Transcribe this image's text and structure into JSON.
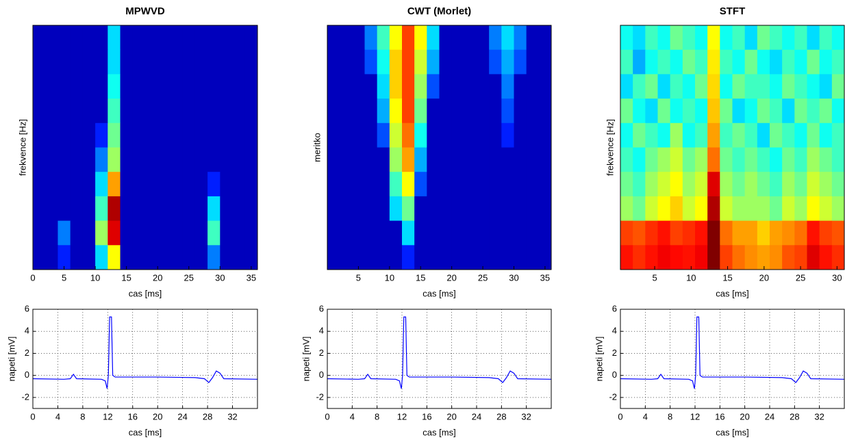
{
  "chart_data": [
    {
      "type": "heatmap",
      "title": "MPWVD",
      "xlabel": "cas [ms]",
      "ylabel": "frekvence [Hz]",
      "xlim": [
        0,
        36
      ],
      "xticks": [
        0,
        5,
        10,
        15,
        20,
        25,
        30,
        35
      ],
      "z": [
        [
          0,
          0,
          0,
          0,
          0,
          0,
          0.3,
          0,
          0,
          0,
          0,
          0,
          0,
          0,
          0,
          0,
          0,
          0
        ],
        [
          0,
          0,
          0,
          0,
          0,
          0,
          0.3,
          0,
          0,
          0,
          0,
          0,
          0,
          0,
          0,
          0,
          0,
          0
        ],
        [
          0,
          0,
          0,
          0,
          0,
          0,
          0.35,
          0,
          0,
          0,
          0,
          0,
          0,
          0,
          0,
          0,
          0,
          0
        ],
        [
          0,
          0,
          0,
          0,
          0,
          0,
          0.4,
          0,
          0,
          0,
          0,
          0,
          0,
          0,
          0,
          0,
          0,
          0
        ],
        [
          0,
          0,
          0,
          0,
          0,
          0.1,
          0.45,
          0,
          0,
          0,
          0,
          0,
          0,
          0,
          0,
          0,
          0,
          0
        ],
        [
          0,
          0,
          0,
          0,
          0,
          0.2,
          0.5,
          0,
          0,
          0,
          0,
          0,
          0,
          0,
          0,
          0,
          0,
          0
        ],
        [
          0,
          0,
          0,
          0,
          0,
          0.3,
          0.7,
          0,
          0,
          0,
          0,
          0,
          0,
          0,
          0.1,
          0,
          0,
          0
        ],
        [
          0,
          0,
          0,
          0,
          0,
          0.4,
          0.95,
          0,
          0,
          0,
          0,
          0,
          0,
          0,
          0.3,
          0,
          0,
          0
        ],
        [
          0,
          0,
          0.2,
          0,
          0,
          0.5,
          0.9,
          0,
          0,
          0,
          0,
          0,
          0,
          0,
          0.4,
          0,
          0,
          0
        ],
        [
          0,
          0,
          0.1,
          0,
          0,
          0.3,
          0.6,
          0,
          0,
          0,
          0,
          0,
          0,
          0,
          0.2,
          0,
          0,
          0
        ]
      ]
    },
    {
      "type": "heatmap",
      "title": "CWT (Morlet)",
      "xlabel": "cas [ms]",
      "ylabel": "meritko",
      "xlim": [
        0,
        36
      ],
      "xticks": [
        5,
        10,
        15,
        20,
        25,
        30,
        35
      ],
      "z": [
        [
          0,
          0,
          0,
          0.2,
          0.4,
          0.6,
          0.8,
          0.6,
          0.3,
          0,
          0,
          0,
          0,
          0.2,
          0.3,
          0.2,
          0,
          0
        ],
        [
          0,
          0,
          0,
          0.15,
          0.35,
          0.65,
          0.8,
          0.55,
          0.25,
          0,
          0,
          0,
          0,
          0.15,
          0.25,
          0.15,
          0,
          0
        ],
        [
          0,
          0,
          0,
          0,
          0.3,
          0.65,
          0.8,
          0.5,
          0.15,
          0,
          0,
          0,
          0,
          0,
          0.2,
          0,
          0,
          0
        ],
        [
          0,
          0,
          0,
          0,
          0.25,
          0.6,
          0.8,
          0.45,
          0,
          0,
          0,
          0,
          0,
          0,
          0.15,
          0,
          0,
          0
        ],
        [
          0,
          0,
          0,
          0,
          0.15,
          0.55,
          0.75,
          0.35,
          0,
          0,
          0,
          0,
          0,
          0,
          0.1,
          0,
          0,
          0
        ],
        [
          0,
          0,
          0,
          0,
          0,
          0.5,
          0.7,
          0.25,
          0,
          0,
          0,
          0,
          0,
          0,
          0,
          0,
          0,
          0
        ],
        [
          0,
          0,
          0,
          0,
          0,
          0.4,
          0.6,
          0.15,
          0,
          0,
          0,
          0,
          0,
          0,
          0,
          0,
          0,
          0
        ],
        [
          0,
          0,
          0,
          0,
          0,
          0.3,
          0.45,
          0,
          0,
          0,
          0,
          0,
          0,
          0,
          0,
          0,
          0,
          0
        ],
        [
          0,
          0,
          0,
          0,
          0,
          0,
          0.3,
          0,
          0,
          0,
          0,
          0,
          0,
          0,
          0,
          0,
          0,
          0
        ],
        [
          0,
          0,
          0,
          0,
          0,
          0,
          0.1,
          0,
          0,
          0,
          0,
          0,
          0,
          0,
          0,
          0,
          0,
          0
        ]
      ]
    },
    {
      "type": "heatmap",
      "title": "STFT",
      "xlabel": "cas [ms]",
      "ylabel": "frekvence [Hz]",
      "xlim": [
        0.3,
        31
      ],
      "xticks": [
        5,
        10,
        15,
        20,
        25,
        30
      ],
      "z": [
        [
          0.35,
          0.3,
          0.4,
          0.35,
          0.45,
          0.4,
          0.35,
          0.6,
          0.35,
          0.4,
          0.3,
          0.45,
          0.4,
          0.35,
          0.4,
          0.3,
          0.4,
          0.35
        ],
        [
          0.4,
          0.25,
          0.35,
          0.4,
          0.35,
          0.45,
          0.4,
          0.62,
          0.4,
          0.35,
          0.45,
          0.35,
          0.3,
          0.4,
          0.35,
          0.45,
          0.35,
          0.4
        ],
        [
          0.3,
          0.4,
          0.45,
          0.3,
          0.4,
          0.35,
          0.45,
          0.64,
          0.35,
          0.45,
          0.4,
          0.4,
          0.35,
          0.45,
          0.4,
          0.35,
          0.3,
          0.45
        ],
        [
          0.45,
          0.35,
          0.3,
          0.45,
          0.35,
          0.4,
          0.35,
          0.66,
          0.45,
          0.3,
          0.35,
          0.45,
          0.4,
          0.3,
          0.45,
          0.4,
          0.45,
          0.35
        ],
        [
          0.35,
          0.45,
          0.4,
          0.35,
          0.5,
          0.35,
          0.4,
          0.7,
          0.4,
          0.45,
          0.4,
          0.3,
          0.45,
          0.4,
          0.35,
          0.45,
          0.35,
          0.4
        ],
        [
          0.4,
          0.35,
          0.45,
          0.5,
          0.55,
          0.45,
          0.5,
          0.75,
          0.45,
          0.4,
          0.45,
          0.4,
          0.35,
          0.45,
          0.4,
          0.5,
          0.45,
          0.4
        ],
        [
          0.45,
          0.4,
          0.5,
          0.55,
          0.6,
          0.5,
          0.55,
          0.9,
          0.5,
          0.45,
          0.5,
          0.45,
          0.4,
          0.5,
          0.45,
          0.55,
          0.5,
          0.45
        ],
        [
          0.5,
          0.45,
          0.55,
          0.6,
          0.65,
          0.55,
          0.6,
          0.95,
          0.55,
          0.5,
          0.5,
          0.5,
          0.45,
          0.55,
          0.5,
          0.6,
          0.55,
          0.5
        ],
        [
          0.8,
          0.78,
          0.82,
          0.85,
          0.8,
          0.82,
          0.85,
          1,
          0.75,
          0.7,
          0.7,
          0.65,
          0.7,
          0.72,
          0.75,
          0.85,
          0.8,
          0.78
        ],
        [
          0.85,
          0.82,
          0.85,
          0.88,
          0.86,
          0.85,
          0.88,
          1,
          0.8,
          0.75,
          0.72,
          0.7,
          0.72,
          0.78,
          0.8,
          0.9,
          0.85,
          0.82
        ]
      ]
    },
    {
      "type": "line",
      "xlabel": "cas [ms]",
      "ylabel": "napeti [mV]",
      "grid": true,
      "xlim": [
        0,
        36
      ],
      "xticks": [
        0,
        4,
        8,
        12,
        16,
        20,
        24,
        28,
        32
      ],
      "ylim": [
        -3,
        6
      ],
      "yticks": [
        -2,
        0,
        2,
        4,
        6
      ],
      "x": [
        0,
        5,
        6,
        6.5,
        7,
        11,
        11.6,
        11.9,
        12.1,
        12.3,
        12.6,
        12.8,
        13.2,
        20,
        26,
        27.5,
        28.2,
        28.8,
        29.4,
        30,
        30.6,
        36
      ],
      "series": [
        {
          "color": "#0000ff",
          "values": [
            -0.3,
            -0.35,
            -0.3,
            0.1,
            -0.3,
            -0.35,
            -0.5,
            -1.2,
            0,
            5.3,
            5.3,
            0,
            -0.15,
            -0.15,
            -0.2,
            -0.3,
            -0.65,
            -0.2,
            0.4,
            0.2,
            -0.3,
            -0.35
          ]
        }
      ]
    },
    {
      "type": "line",
      "xlabel": "cas [ms]",
      "ylabel": "napeti [mV]",
      "grid": true,
      "xlim": [
        0,
        36
      ],
      "xticks": [
        0,
        4,
        8,
        12,
        16,
        20,
        24,
        28,
        32
      ],
      "ylim": [
        -3,
        6
      ],
      "yticks": [
        -2,
        0,
        2,
        4,
        6
      ],
      "x": [
        0,
        5,
        6,
        6.5,
        7,
        11,
        11.6,
        11.9,
        12.1,
        12.3,
        12.6,
        12.8,
        13.2,
        20,
        26,
        27.5,
        28.2,
        28.8,
        29.4,
        30,
        30.6,
        36
      ],
      "series": [
        {
          "color": "#0000ff",
          "values": [
            -0.3,
            -0.35,
            -0.3,
            0.1,
            -0.3,
            -0.35,
            -0.5,
            -1.2,
            0,
            5.3,
            5.3,
            0,
            -0.15,
            -0.15,
            -0.2,
            -0.3,
            -0.65,
            -0.2,
            0.4,
            0.2,
            -0.3,
            -0.35
          ]
        }
      ]
    },
    {
      "type": "line",
      "xlabel": "cas [ms]",
      "ylabel": "napeti [mV]",
      "grid": true,
      "xlim": [
        0,
        36
      ],
      "xticks": [
        0,
        4,
        8,
        12,
        16,
        20,
        24,
        28,
        32
      ],
      "ylim": [
        -3,
        6
      ],
      "yticks": [
        -2,
        0,
        2,
        4,
        6
      ],
      "x": [
        0,
        5,
        6,
        6.5,
        7,
        11,
        11.6,
        11.9,
        12.1,
        12.3,
        12.6,
        12.8,
        13.2,
        20,
        26,
        27.5,
        28.2,
        28.8,
        29.4,
        30,
        30.6,
        36
      ],
      "series": [
        {
          "color": "#0000ff",
          "values": [
            -0.3,
            -0.35,
            -0.3,
            0.1,
            -0.3,
            -0.35,
            -0.5,
            -1.2,
            0,
            5.3,
            5.3,
            0,
            -0.15,
            -0.15,
            -0.2,
            -0.3,
            -0.65,
            -0.2,
            0.4,
            0.2,
            -0.3,
            -0.35
          ]
        }
      ]
    }
  ]
}
